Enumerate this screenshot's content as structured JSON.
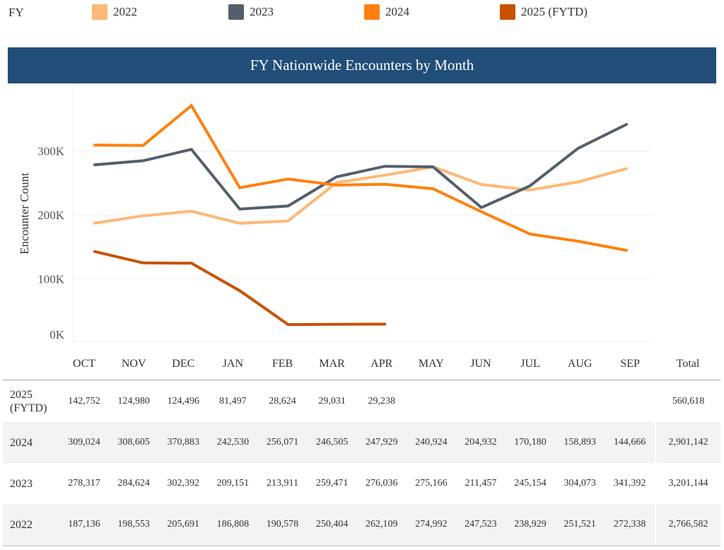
{
  "legend": {
    "title": "FY",
    "items": [
      {
        "label": "2022",
        "color": "#ffb877"
      },
      {
        "label": "2023",
        "color": "#555f6b"
      },
      {
        "label": "2024",
        "color": "#ff800e"
      },
      {
        "label": "2025 (FYTD)",
        "color": "#c85200"
      }
    ]
  },
  "chart_data": {
    "type": "line",
    "title": "FY Nationwide Encounters by Month",
    "xlabel": "",
    "ylabel": "Encounter Count",
    "categories": [
      "OCT",
      "NOV",
      "DEC",
      "JAN",
      "FEB",
      "MAR",
      "APR",
      "MAY",
      "JUN",
      "JUL",
      "AUG",
      "SEP"
    ],
    "yticks": [
      {
        "value": 0,
        "label": "0K"
      },
      {
        "value": 100000,
        "label": "100K"
      },
      {
        "value": 200000,
        "label": "200K"
      },
      {
        "value": 300000,
        "label": "300K"
      }
    ],
    "ylim": [
      0,
      400000
    ],
    "grid": true,
    "legend_position": "top",
    "series": [
      {
        "name": "2022",
        "color": "#ffb877",
        "values": [
          187136,
          198553,
          205691,
          186808,
          190578,
          250404,
          262109,
          274992,
          247523,
          238929,
          251521,
          272338
        ]
      },
      {
        "name": "2023",
        "color": "#555f6b",
        "values": [
          278317,
          284624,
          302392,
          209151,
          213911,
          259471,
          276036,
          275166,
          211457,
          245154,
          304073,
          341392
        ]
      },
      {
        "name": "2024",
        "color": "#ff800e",
        "values": [
          309024,
          308605,
          370883,
          242530,
          256071,
          246505,
          247929,
          240924,
          204932,
          170180,
          158893,
          144666
        ]
      },
      {
        "name": "2025 (FYTD)",
        "color": "#c85200",
        "values": [
          142752,
          124980,
          124496,
          81497,
          28624,
          29031,
          29238,
          null,
          null,
          null,
          null,
          null
        ]
      }
    ]
  },
  "table": {
    "total_header": "Total",
    "rows": [
      {
        "year": "2025\n(FYTD)",
        "cells": [
          "142,752",
          "124,980",
          "124,496",
          "81,497",
          "28,624",
          "29,031",
          "29,238",
          "",
          "",
          "",
          "",
          ""
        ],
        "total": "560,618"
      },
      {
        "year": "2024",
        "cells": [
          "309,024",
          "308,605",
          "370,883",
          "242,530",
          "256,071",
          "246,505",
          "247,929",
          "240,924",
          "204,932",
          "170,180",
          "158,893",
          "144,666"
        ],
        "total": "2,901,142"
      },
      {
        "year": "2023",
        "cells": [
          "278,317",
          "284,624",
          "302,392",
          "209,151",
          "213,911",
          "259,471",
          "276,036",
          "275,166",
          "211,457",
          "245,154",
          "304,073",
          "341,392"
        ],
        "total": "3,201,144"
      },
      {
        "year": "2022",
        "cells": [
          "187,136",
          "198,553",
          "205,691",
          "186,808",
          "190,578",
          "250,404",
          "262,109",
          "274,992",
          "247,523",
          "238,929",
          "251,521",
          "272,338"
        ],
        "total": "2,766,582"
      }
    ]
  }
}
